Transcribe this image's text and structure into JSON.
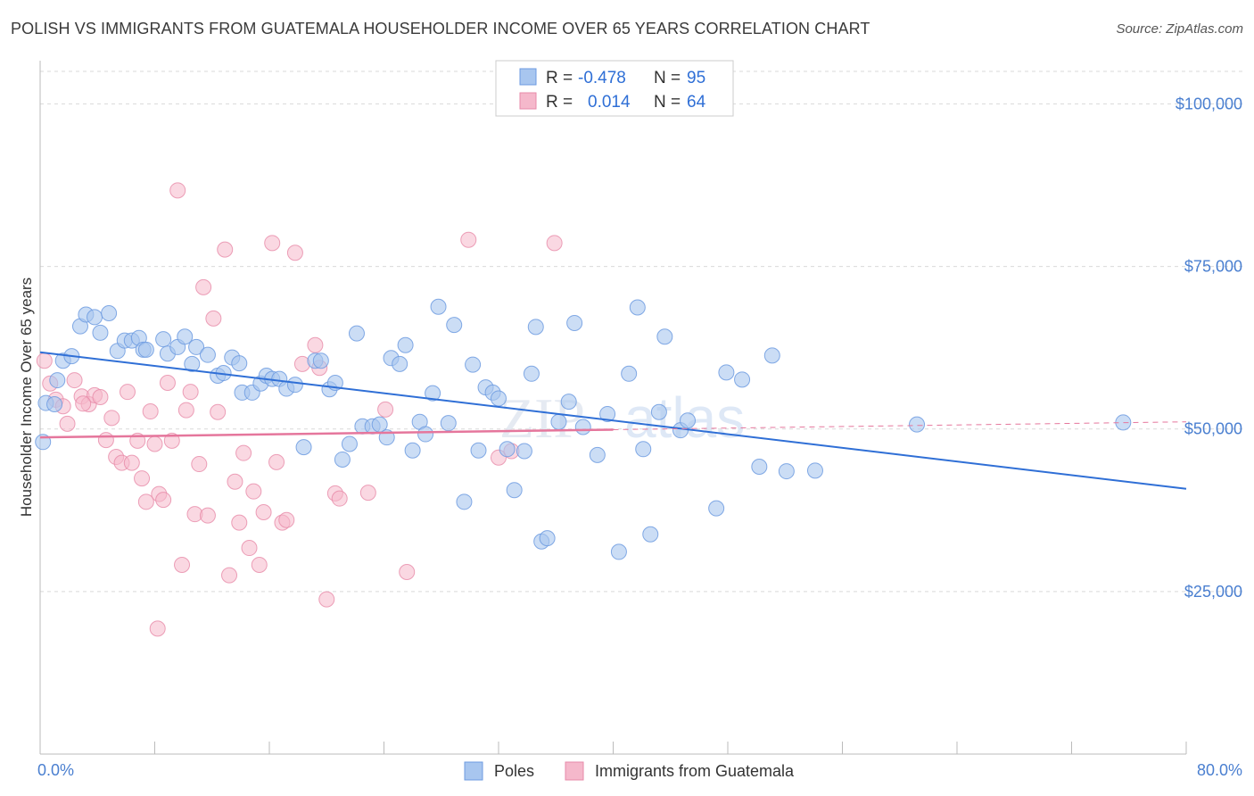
{
  "title": "POLISH VS IMMIGRANTS FROM GUATEMALA HOUSEHOLDER INCOME OVER 65 YEARS CORRELATION CHART",
  "source": "Source: ZipAtlas.com",
  "chart_data": {
    "type": "scatter",
    "ylabel": "Householder Income Over 65 years",
    "xlim": [
      0,
      80
    ],
    "ylim": [
      0,
      105000
    ],
    "y_ticks": [
      {
        "value": 100000,
        "label": "$100,000"
      },
      {
        "value": 75000,
        "label": "$75,000"
      },
      {
        "value": 50000,
        "label": "$50,000"
      },
      {
        "value": 25000,
        "label": "$25,000"
      }
    ],
    "x_ticks": [
      {
        "value": 0,
        "label": "0.0%"
      },
      {
        "value": 80,
        "label": "80.0%"
      }
    ],
    "legend": {
      "rows": [
        {
          "r_label": "R =",
          "r_value": "-0.478",
          "n_label": "N =",
          "n_value": "95"
        },
        {
          "r_label": "R =",
          "r_value": "0.014",
          "n_label": "N =",
          "n_value": "64"
        }
      ]
    },
    "colors": {
      "poles": "#a8c6ef",
      "poles_edge": "#6d9be0",
      "poles_line": "#2f6fd6",
      "guatemala": "#f5b8cb",
      "guatemala_edge": "#e78aa8",
      "guatemala_line": "#e5769c"
    },
    "series": [
      {
        "name": "Poles",
        "trend": {
          "x1": 0,
          "y1": 61800,
          "x2": 80,
          "y2": 40800
        },
        "points": [
          [
            0.2,
            48000
          ],
          [
            0.4,
            54000
          ],
          [
            1.2,
            57500
          ],
          [
            1.6,
            60500
          ],
          [
            2.2,
            61200
          ],
          [
            2.8,
            65800
          ],
          [
            3.2,
            67600
          ],
          [
            3.8,
            67200
          ],
          [
            4.2,
            64800
          ],
          [
            4.8,
            67800
          ],
          [
            5.4,
            62000
          ],
          [
            5.9,
            63600
          ],
          [
            6.4,
            63600
          ],
          [
            6.9,
            64000
          ],
          [
            7.2,
            62200
          ],
          [
            7.4,
            62200
          ],
          [
            8.6,
            63800
          ],
          [
            8.9,
            61600
          ],
          [
            9.6,
            62600
          ],
          [
            10.1,
            64200
          ],
          [
            10.9,
            62600
          ],
          [
            10.6,
            60000
          ],
          [
            11.7,
            61400
          ],
          [
            12.4,
            58200
          ],
          [
            12.8,
            58600
          ],
          [
            13.4,
            61000
          ],
          [
            13.9,
            60100
          ],
          [
            14.1,
            55600
          ],
          [
            14.8,
            55600
          ],
          [
            15.4,
            57000
          ],
          [
            15.8,
            58200
          ],
          [
            16.2,
            57700
          ],
          [
            16.7,
            57700
          ],
          [
            17.2,
            56200
          ],
          [
            17.8,
            56800
          ],
          [
            18.4,
            47200
          ],
          [
            19.2,
            60500
          ],
          [
            19.6,
            60500
          ],
          [
            20.2,
            56100
          ],
          [
            20.6,
            57100
          ],
          [
            21.1,
            45300
          ],
          [
            21.6,
            47700
          ],
          [
            22.1,
            64700
          ],
          [
            22.5,
            50400
          ],
          [
            23.2,
            50400
          ],
          [
            23.7,
            50700
          ],
          [
            24.2,
            48700
          ],
          [
            24.5,
            60900
          ],
          [
            25.1,
            60000
          ],
          [
            25.5,
            62900
          ],
          [
            26.0,
            46700
          ],
          [
            26.5,
            51100
          ],
          [
            26.9,
            49200
          ],
          [
            27.4,
            55500
          ],
          [
            27.8,
            68800
          ],
          [
            28.5,
            50900
          ],
          [
            28.9,
            66000
          ],
          [
            29.6,
            38800
          ],
          [
            30.2,
            59900
          ],
          [
            30.6,
            46700
          ],
          [
            31.1,
            56400
          ],
          [
            31.6,
            55600
          ],
          [
            32.0,
            54700
          ],
          [
            32.6,
            46900
          ],
          [
            33.1,
            40600
          ],
          [
            33.8,
            46600
          ],
          [
            34.3,
            58500
          ],
          [
            34.6,
            65700
          ],
          [
            35.0,
            32700
          ],
          [
            35.4,
            33200
          ],
          [
            36.2,
            51100
          ],
          [
            36.9,
            54200
          ],
          [
            37.3,
            66300
          ],
          [
            37.9,
            50300
          ],
          [
            38.9,
            46000
          ],
          [
            39.6,
            52300
          ],
          [
            40.4,
            31100
          ],
          [
            41.1,
            58500
          ],
          [
            41.7,
            68700
          ],
          [
            42.1,
            46900
          ],
          [
            42.6,
            33800
          ],
          [
            43.2,
            52600
          ],
          [
            43.6,
            64200
          ],
          [
            44.7,
            49800
          ],
          [
            45.2,
            51300
          ],
          [
            47.2,
            37800
          ],
          [
            47.9,
            58700
          ],
          [
            49.0,
            57600
          ],
          [
            50.2,
            44200
          ],
          [
            51.1,
            61300
          ],
          [
            52.1,
            43500
          ],
          [
            54.1,
            43600
          ],
          [
            61.2,
            50700
          ],
          [
            75.6,
            51000
          ],
          [
            1.0,
            53800
          ]
        ]
      },
      {
        "name": "Immigrants from Guatemala",
        "trend": {
          "x1": 0,
          "y1": 48700,
          "x2": 40,
          "y2": 49900,
          "dashed_to_x": 80,
          "dashed_to_y": 51100
        },
        "points": [
          [
            0.3,
            60500
          ],
          [
            0.7,
            57000
          ],
          [
            1.1,
            54500
          ],
          [
            1.6,
            53500
          ],
          [
            1.9,
            50800
          ],
          [
            2.4,
            57500
          ],
          [
            2.9,
            55000
          ],
          [
            3.4,
            53800
          ],
          [
            3.8,
            55200
          ],
          [
            4.2,
            54900
          ],
          [
            4.6,
            48300
          ],
          [
            5.0,
            51700
          ],
          [
            5.3,
            45700
          ],
          [
            5.7,
            44800
          ],
          [
            6.1,
            55700
          ],
          [
            6.4,
            44800
          ],
          [
            6.8,
            48200
          ],
          [
            7.1,
            42400
          ],
          [
            7.4,
            38800
          ],
          [
            7.7,
            52700
          ],
          [
            8.0,
            47700
          ],
          [
            8.3,
            40000
          ],
          [
            8.6,
            39100
          ],
          [
            8.9,
            57100
          ],
          [
            9.2,
            48200
          ],
          [
            9.6,
            86700
          ],
          [
            9.9,
            29100
          ],
          [
            10.2,
            52900
          ],
          [
            10.5,
            55700
          ],
          [
            10.8,
            36900
          ],
          [
            11.1,
            44600
          ],
          [
            11.4,
            71800
          ],
          [
            11.7,
            36700
          ],
          [
            12.1,
            67000
          ],
          [
            12.4,
            52600
          ],
          [
            12.9,
            77600
          ],
          [
            13.2,
            27500
          ],
          [
            13.6,
            41900
          ],
          [
            13.9,
            35600
          ],
          [
            14.2,
            46300
          ],
          [
            14.6,
            31700
          ],
          [
            14.9,
            40400
          ],
          [
            15.3,
            29100
          ],
          [
            15.6,
            37200
          ],
          [
            16.2,
            78600
          ],
          [
            16.5,
            44900
          ],
          [
            16.9,
            35600
          ],
          [
            17.2,
            36000
          ],
          [
            17.8,
            77100
          ],
          [
            19.2,
            62900
          ],
          [
            19.5,
            59400
          ],
          [
            20.0,
            23800
          ],
          [
            20.6,
            40100
          ],
          [
            20.9,
            39300
          ],
          [
            22.9,
            40200
          ],
          [
            24.1,
            53000
          ],
          [
            25.6,
            28000
          ],
          [
            29.9,
            79100
          ],
          [
            32.0,
            45600
          ],
          [
            35.9,
            78600
          ],
          [
            8.2,
            19300
          ],
          [
            18.3,
            60000
          ],
          [
            32.9,
            46600
          ],
          [
            3.0,
            53900
          ]
        ]
      }
    ]
  },
  "bottom_legend": [
    "Poles",
    "Immigrants from Guatemala"
  ],
  "watermark": "ZIPatlas"
}
